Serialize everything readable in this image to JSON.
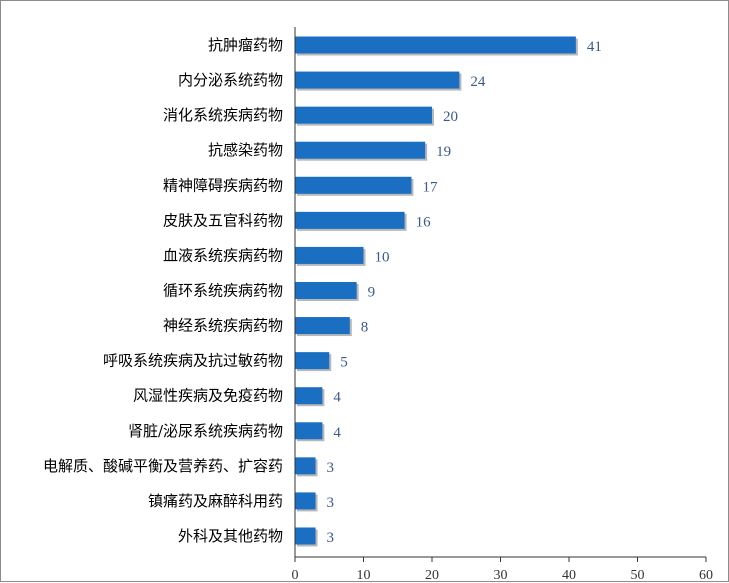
{
  "chart_data": {
    "type": "bar",
    "orientation": "horizontal",
    "categories": [
      "抗肿瘤药物",
      "内分泌系统药物",
      "消化系统疾病药物",
      "抗感染药物",
      "精神障碍疾病药物",
      "皮肤及五官科药物",
      "血液系统疾病药物",
      "循环系统疾病药物",
      "神经系统疾病药物",
      "呼吸系统疾病及抗过敏药物",
      "风湿性疾病及免疫药物",
      "肾脏/泌尿系统疾病药物",
      "电解质、酸碱平衡及营养药、扩容药",
      "镇痛药及麻醉科用药",
      "外科及其他药物"
    ],
    "values": [
      41,
      24,
      20,
      19,
      17,
      16,
      10,
      9,
      8,
      5,
      4,
      4,
      3,
      3,
      3
    ],
    "value_labels": [
      "41",
      "24",
      "20",
      "19",
      "17",
      "16",
      "10",
      "9",
      "8",
      "5",
      "4",
      "4",
      "3",
      "3",
      "3"
    ],
    "xlim": [
      0,
      60
    ],
    "x_ticks": [
      0,
      10,
      20,
      30,
      40,
      50,
      60
    ],
    "x_tick_labels": [
      "0",
      "10",
      "20",
      "30",
      "40",
      "50",
      "60"
    ],
    "title": "",
    "xlabel": "",
    "ylabel": "",
    "grid": false,
    "legend": "none",
    "colors": {
      "bar": "#1a6fc2",
      "bar_shadow": "#b8b8b8",
      "value_label": "#3a5a8a",
      "axis": "#333333"
    }
  }
}
